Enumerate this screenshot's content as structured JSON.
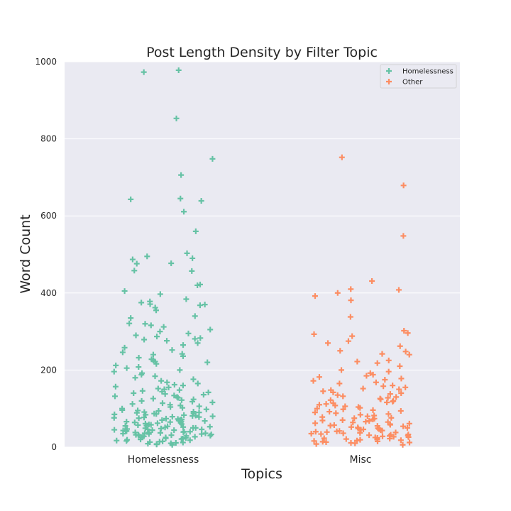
{
  "chart_data": {
    "type": "scatter",
    "title": "Post Length Density by Filter Topic",
    "xlabel": "Topics",
    "ylabel": "Word Count",
    "ylim": [
      0,
      1000
    ],
    "yticks": [
      0,
      200,
      400,
      600,
      800,
      1000
    ],
    "categories": [
      "Homelessness",
      "Misc"
    ],
    "grid": true,
    "legend_position": "top-right",
    "marker": "plus",
    "series": [
      {
        "name": "Homelessness",
        "category": "Homelessness",
        "color": "#66c2a5",
        "values": [
          978,
          973,
          853,
          748,
          706,
          645,
          643,
          639,
          611,
          560,
          503,
          495,
          490,
          487,
          477,
          476,
          458,
          457,
          422,
          420,
          405,
          397,
          384,
          378,
          375,
          371,
          370,
          368,
          362,
          355,
          340,
          335,
          321,
          320,
          316,
          312,
          305,
          300,
          295,
          290,
          287,
          283,
          281,
          279,
          276,
          270,
          265,
          258,
          252,
          246,
          242,
          240,
          236,
          232,
          228,
          225,
          222,
          220,
          216,
          212,
          208,
          205,
          200,
          196,
          192,
          188,
          184,
          180,
          176,
          172,
          168,
          165,
          162,
          160,
          157,
          155,
          152,
          150,
          148,
          146,
          144,
          142,
          140,
          138,
          136,
          134,
          132,
          130,
          128,
          126,
          124,
          122,
          120,
          118,
          116,
          114,
          112,
          110,
          108,
          106,
          104,
          102,
          100,
          98,
          96,
          95,
          94,
          92,
          91,
          90,
          89,
          88,
          87,
          86,
          85,
          84,
          83,
          82,
          81,
          80,
          79,
          78,
          77,
          76,
          75,
          74,
          73,
          72,
          71,
          70,
          69,
          68,
          67,
          66,
          65,
          64,
          63,
          62,
          61,
          60,
          59,
          58,
          57,
          56,
          55,
          54,
          53,
          52,
          51,
          50,
          50,
          49,
          48,
          48,
          47,
          46,
          46,
          45,
          44,
          44,
          43,
          42,
          42,
          41,
          40,
          40,
          39,
          38,
          38,
          37,
          36,
          36,
          35,
          34,
          34,
          33,
          32,
          32,
          31,
          30,
          30,
          29,
          28,
          27,
          26,
          25,
          24,
          23,
          22,
          21,
          20,
          19,
          18,
          17,
          16,
          15,
          14,
          13,
          12,
          11,
          10,
          9,
          8,
          7,
          6
        ]
      },
      {
        "name": "Other",
        "category": "Misc",
        "color": "#fc8d62",
        "values": [
          752,
          679,
          548,
          431,
          410,
          408,
          400,
          392,
          381,
          338,
          302,
          296,
          293,
          288,
          275,
          270,
          262,
          250,
          248,
          242,
          240,
          225,
          222,
          218,
          210,
          200,
          196,
          192,
          188,
          185,
          182,
          178,
          175,
          172,
          168,
          165,
          160,
          158,
          155,
          152,
          150,
          148,
          145,
          142,
          140,
          138,
          135,
          132,
          130,
          128,
          126,
          124,
          122,
          120,
          118,
          116,
          114,
          112,
          110,
          108,
          106,
          104,
          102,
          100,
          98,
          96,
          94,
          92,
          90,
          88,
          86,
          84,
          82,
          80,
          78,
          76,
          75,
          74,
          72,
          70,
          69,
          68,
          66,
          65,
          64,
          62,
          61,
          60,
          58,
          57,
          56,
          55,
          54,
          52,
          51,
          50,
          49,
          48,
          47,
          46,
          45,
          44,
          43,
          42,
          41,
          40,
          39,
          38,
          37,
          36,
          35,
          34,
          33,
          32,
          31,
          30,
          29,
          28,
          27,
          26,
          25,
          24,
          23,
          22,
          21,
          20,
          19,
          18,
          17,
          16,
          15,
          14,
          13,
          12,
          11,
          10,
          8,
          6
        ]
      }
    ]
  }
}
